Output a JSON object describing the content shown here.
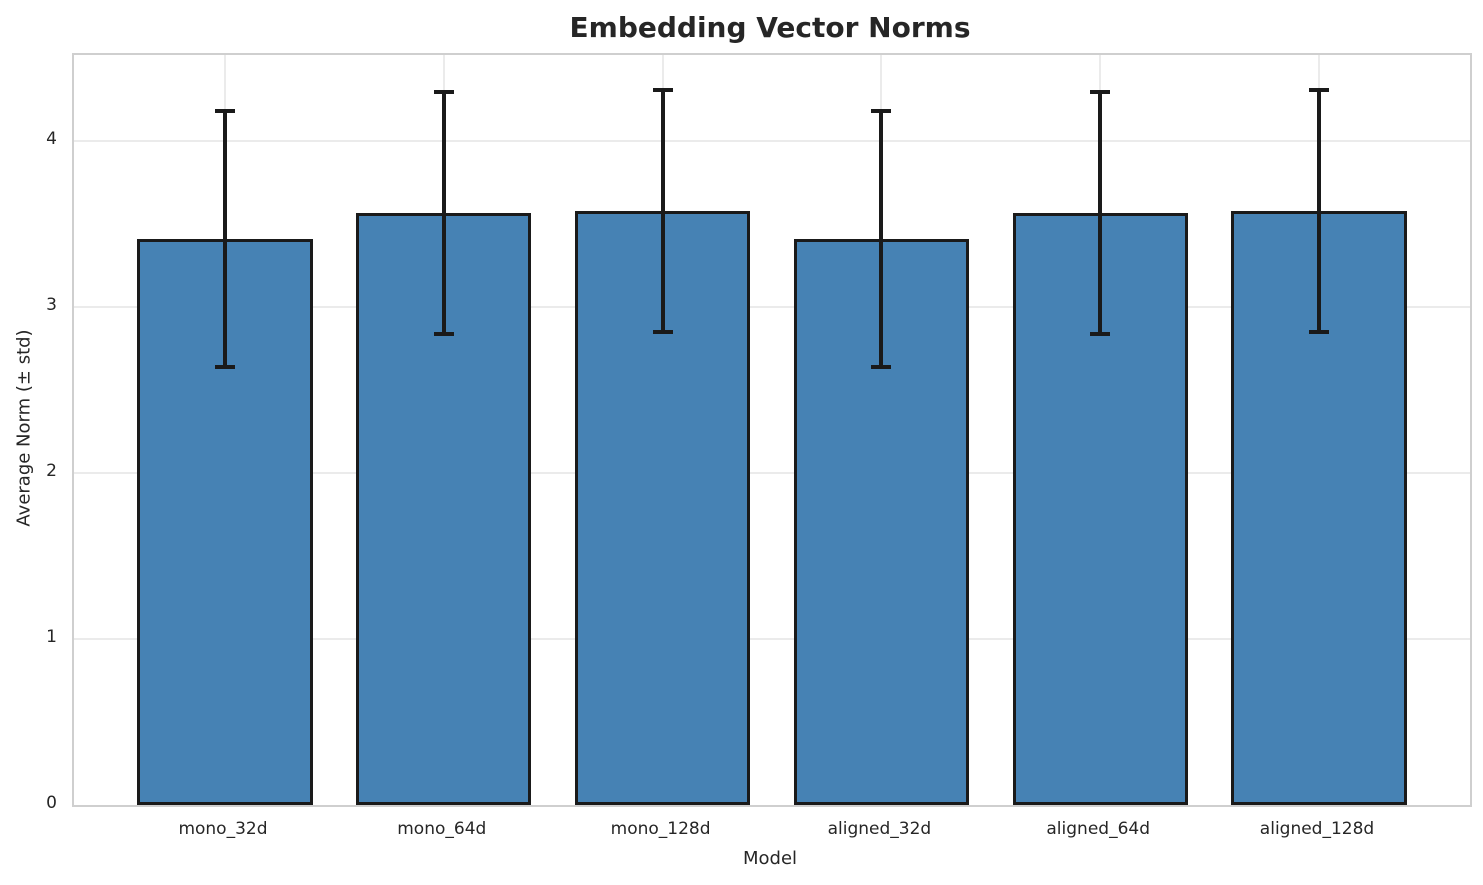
{
  "chart_data": {
    "type": "bar",
    "title": "Embedding Vector Norms",
    "xlabel": "Model",
    "ylabel": "Average Norm (± std)",
    "categories": [
      "mono_32d",
      "mono_64d",
      "mono_128d",
      "aligned_32d",
      "aligned_64d",
      "aligned_128d"
    ],
    "values": [
      3.41,
      3.57,
      3.58,
      3.41,
      3.57,
      3.58
    ],
    "errors": [
      0.77,
      0.73,
      0.73,
      0.77,
      0.73,
      0.73
    ],
    "yticks": [
      "0",
      "1",
      "2",
      "3",
      "4"
    ],
    "ytick_values": [
      0,
      1,
      2,
      3,
      4
    ],
    "ylim": [
      0,
      4.52
    ],
    "bar_width_fraction": 0.8,
    "grid": "both",
    "legend": false,
    "colors": {
      "bar_fill": "#4682B4",
      "bar_edge": "#1a1a1a",
      "error_bar": "#1a1a1a",
      "gridline": "#ebebeb",
      "spine": "#cfcfcf",
      "text": "#262626",
      "background": "#ffffff"
    }
  }
}
